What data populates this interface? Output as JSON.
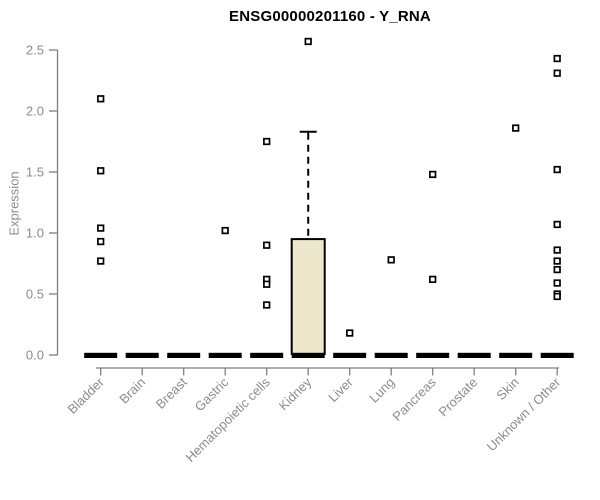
{
  "chart_data": {
    "type": "boxplot",
    "title": "ENSG00000201160 - Y_RNA",
    "ylabel": "Expression",
    "xlabel": "",
    "ylim": [
      0,
      2.5
    ],
    "yticks": [
      0.0,
      0.5,
      1.0,
      1.5,
      2.0,
      2.5
    ],
    "grid": false,
    "legend": "none",
    "categories": [
      "Bladder",
      "Brain",
      "Breast",
      "Gastric",
      "Hematopoietic cells",
      "Kidney",
      "Liver",
      "Lung",
      "Pancreas",
      "Prostate",
      "Skin",
      "Unknown / Other"
    ],
    "series": [
      {
        "category": "Bladder",
        "q1": 0,
        "median": 0,
        "q3": 0,
        "whisker_low": 0,
        "whisker_high": 0,
        "outliers": [
          2.1,
          1.51,
          1.04,
          0.93,
          0.77
        ]
      },
      {
        "category": "Brain",
        "q1": 0,
        "median": 0,
        "q3": 0,
        "whisker_low": 0,
        "whisker_high": 0,
        "outliers": []
      },
      {
        "category": "Breast",
        "q1": 0,
        "median": 0,
        "q3": 0,
        "whisker_low": 0,
        "whisker_high": 0,
        "outliers": []
      },
      {
        "category": "Gastric",
        "q1": 0,
        "median": 0,
        "q3": 0,
        "whisker_low": 0,
        "whisker_high": 0,
        "outliers": [
          1.02
        ]
      },
      {
        "category": "Hematopoietic cells",
        "q1": 0,
        "median": 0,
        "q3": 0,
        "whisker_low": 0,
        "whisker_high": 0,
        "outliers": [
          1.75,
          0.9,
          0.62,
          0.58,
          0.41
        ]
      },
      {
        "category": "Kidney",
        "q1": 0,
        "median": 0,
        "q3": 0.95,
        "whisker_low": 0,
        "whisker_high": 1.83,
        "outliers": [
          2.57
        ]
      },
      {
        "category": "Liver",
        "q1": 0,
        "median": 0,
        "q3": 0,
        "whisker_low": 0,
        "whisker_high": 0,
        "outliers": [
          0.18
        ]
      },
      {
        "category": "Lung",
        "q1": 0,
        "median": 0,
        "q3": 0,
        "whisker_low": 0,
        "whisker_high": 0,
        "outliers": [
          0.78
        ]
      },
      {
        "category": "Pancreas",
        "q1": 0,
        "median": 0,
        "q3": 0,
        "whisker_low": 0,
        "whisker_high": 0,
        "outliers": [
          1.48,
          0.62
        ]
      },
      {
        "category": "Prostate",
        "q1": 0,
        "median": 0,
        "q3": 0,
        "whisker_low": 0,
        "whisker_high": 0,
        "outliers": []
      },
      {
        "category": "Skin",
        "q1": 0,
        "median": 0,
        "q3": 0,
        "whisker_low": 0,
        "whisker_high": 0,
        "outliers": [
          1.86
        ]
      },
      {
        "category": "Unknown / Other",
        "q1": 0,
        "median": 0,
        "q3": 0,
        "whisker_low": 0,
        "whisker_high": 0,
        "outliers": [
          2.43,
          2.31,
          1.52,
          1.07,
          0.86,
          0.77,
          0.7,
          0.59,
          0.5,
          0.48
        ]
      }
    ]
  },
  "colors": {
    "box_fill": "#EDE7CB",
    "box_border": "#000000",
    "median_bar": "#000000",
    "point_stroke": "#000000",
    "point_fill": "#ffffff",
    "axis_line": "#808080",
    "tick_label": "#8c8c8c",
    "title_text": "#000000",
    "background": "#ffffff"
  }
}
